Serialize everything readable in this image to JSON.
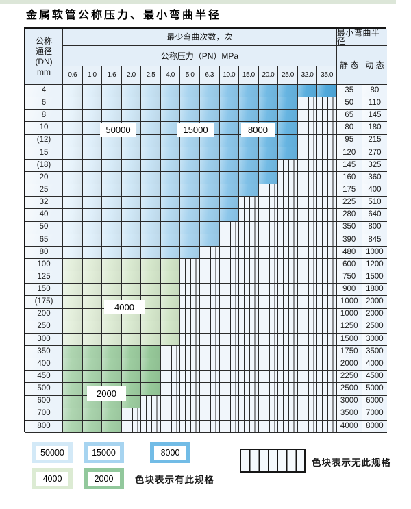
{
  "page": {
    "title": "金属软管公称压力、最小弯曲半径"
  },
  "table": {
    "dn_header_lines": [
      "公称",
      "通径",
      "(DN)",
      "mm"
    ],
    "bend_header": "最少弯曲次数，次",
    "pn_header": "公称压力（PN）MPa",
    "pressure_columns": [
      "0.6",
      "1.0",
      "1.6",
      "2.0",
      "2.5",
      "4.0",
      "5.0",
      "6.3",
      "10.0",
      "15.0",
      "20.0",
      "25.0",
      "32.0",
      "35.0"
    ],
    "radius_header": "最小弯曲半径",
    "static_header": "静 态",
    "dynamic_header": "动 态",
    "rows": [
      {
        "dn": "4",
        "band": "blue",
        "last_pressure": "35.0",
        "static": "35",
        "dynamic": "80"
      },
      {
        "dn": "6",
        "band": "blue",
        "last_pressure": "25.0",
        "static": "50",
        "dynamic": "110"
      },
      {
        "dn": "8",
        "band": "blue",
        "last_pressure": "25.0",
        "static": "65",
        "dynamic": "145"
      },
      {
        "dn": "10",
        "band": "blue",
        "last_pressure": "25.0",
        "static": "80",
        "dynamic": "180"
      },
      {
        "dn": "(12)",
        "band": "blue",
        "last_pressure": "25.0",
        "static": "95",
        "dynamic": "215"
      },
      {
        "dn": "15",
        "band": "blue",
        "last_pressure": "25.0",
        "static": "120",
        "dynamic": "270"
      },
      {
        "dn": "(18)",
        "band": "blue",
        "last_pressure": "20.0",
        "static": "145",
        "dynamic": "325"
      },
      {
        "dn": "20",
        "band": "blue",
        "last_pressure": "20.0",
        "static": "160",
        "dynamic": "360"
      },
      {
        "dn": "25",
        "band": "blue",
        "last_pressure": "15.0",
        "static": "175",
        "dynamic": "400"
      },
      {
        "dn": "32",
        "band": "blue",
        "last_pressure": "10.0",
        "static": "225",
        "dynamic": "510"
      },
      {
        "dn": "40",
        "band": "blue",
        "last_pressure": "10.0",
        "static": "280",
        "dynamic": "640"
      },
      {
        "dn": "50",
        "band": "blue",
        "last_pressure": "6.3",
        "static": "350",
        "dynamic": "800"
      },
      {
        "dn": "65",
        "band": "blue",
        "last_pressure": "6.3",
        "static": "390",
        "dynamic": "845"
      },
      {
        "dn": "80",
        "band": "blue",
        "last_pressure": "5.0",
        "static": "480",
        "dynamic": "1000"
      },
      {
        "dn": "100",
        "band": "g4000",
        "last_pressure": "4.0",
        "static": "600",
        "dynamic": "1200"
      },
      {
        "dn": "125",
        "band": "g4000",
        "last_pressure": "4.0",
        "static": "750",
        "dynamic": "1500"
      },
      {
        "dn": "150",
        "band": "g4000",
        "last_pressure": "4.0",
        "static": "900",
        "dynamic": "1800"
      },
      {
        "dn": "(175)",
        "band": "g4000",
        "last_pressure": "4.0",
        "static": "1000",
        "dynamic": "2000"
      },
      {
        "dn": "200",
        "band": "g4000",
        "last_pressure": "4.0",
        "static": "1000",
        "dynamic": "2000"
      },
      {
        "dn": "250",
        "band": "g4000",
        "last_pressure": "4.0",
        "static": "1250",
        "dynamic": "2500"
      },
      {
        "dn": "300",
        "band": "g4000",
        "last_pressure": "4.0",
        "static": "1500",
        "dynamic": "3000"
      },
      {
        "dn": "350",
        "band": "g2000",
        "last_pressure": "2.5",
        "static": "1750",
        "dynamic": "3500"
      },
      {
        "dn": "400",
        "band": "g2000",
        "last_pressure": "2.5",
        "static": "2000",
        "dynamic": "4000"
      },
      {
        "dn": "450",
        "band": "g2000",
        "last_pressure": "2.5",
        "static": "2250",
        "dynamic": "4500"
      },
      {
        "dn": "500",
        "band": "g2000",
        "last_pressure": "2.5",
        "static": "2500",
        "dynamic": "5000"
      },
      {
        "dn": "600",
        "band": "g2000",
        "last_pressure": "2.0",
        "static": "3000",
        "dynamic": "6000"
      },
      {
        "dn": "700",
        "band": "g2000",
        "last_pressure": "1.6",
        "static": "3500",
        "dynamic": "7000"
      },
      {
        "dn": "800",
        "band": "g2000",
        "last_pressure": "1.6",
        "static": "4000",
        "dynamic": "8000"
      }
    ]
  },
  "overlays": {
    "b50000": "50000",
    "b15000": "15000",
    "b8000": "8000",
    "g4000": "4000",
    "g2000": "2000"
  },
  "legend": {
    "swatches_row1": [
      {
        "label": "50000",
        "color": "#d3e9f7"
      },
      {
        "label": "15000",
        "color": "#a7d4f0"
      },
      {
        "label": "8000",
        "color": "#72bce6"
      }
    ],
    "swatches_row2": [
      {
        "label": "4000",
        "color": "#dcebd3"
      },
      {
        "label": "2000",
        "color": "#92c89c"
      }
    ],
    "has_spec_text": "色块表示有此规格",
    "no_spec_text": "色块表示无此规格"
  },
  "colors": {
    "border": "#2b2b2b",
    "header_bg": "#e3eef8",
    "hatch_bg": "#f1f6fb",
    "blue_palette": [
      "#e7f3fb",
      "#dfeffa",
      "#d7ebf8",
      "#cfe7f6",
      "#c6e2f4",
      "#b5daf1",
      "#a9d4ef",
      "#9dceec",
      "#8cc6ea",
      "#7fc0e7",
      "#72bae4",
      "#66b4e1",
      "#59aede",
      "#4fa8db"
    ],
    "green_4000_palette": [
      "#e4efdc",
      "#e1edd8",
      "#ddebd4",
      "#d9e9d0",
      "#d5e7cb",
      "#d1e5c7"
    ],
    "green_2000_palette": [
      "#aed5b0",
      "#a8d2ab",
      "#a2cfa5",
      "#9ccc9f",
      "#96c899"
    ]
  }
}
